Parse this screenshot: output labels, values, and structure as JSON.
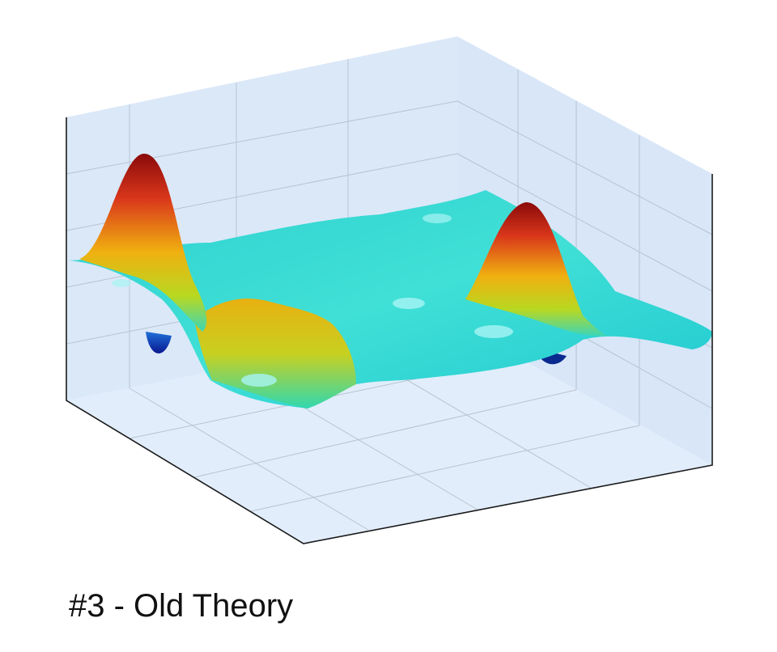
{
  "caption": "#3 - Old Theory"
}
